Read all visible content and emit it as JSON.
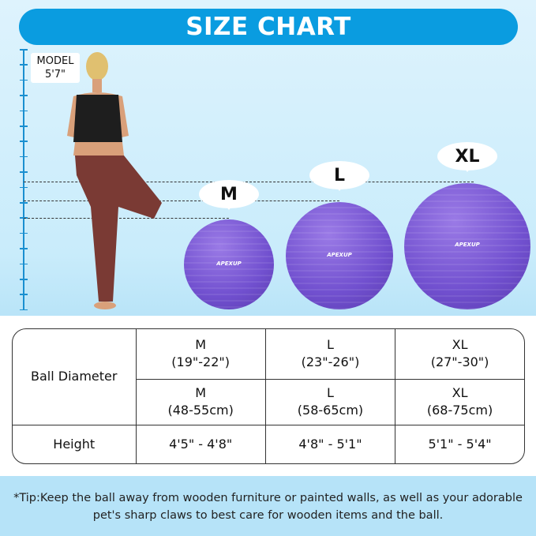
{
  "title": "SIZE CHART",
  "model": {
    "label": "MODEL",
    "height": "5'7\""
  },
  "balls": [
    {
      "size": "M",
      "brand": "APEXUP"
    },
    {
      "size": "L",
      "brand": "APEXUP"
    },
    {
      "size": "XL",
      "brand": "APEXUP"
    }
  ],
  "table": {
    "row_labels": {
      "diameter": "Ball Diameter",
      "height": "Height"
    },
    "inches": [
      {
        "size": "M",
        "range": "(19\"-22\")"
      },
      {
        "size": "L",
        "range": "(23\"-26\")"
      },
      {
        "size": "XL",
        "range": "(27\"-30\")"
      }
    ],
    "cm": [
      {
        "size": "M",
        "range": "(48-55cm)"
      },
      {
        "size": "L",
        "range": "(58-65cm)"
      },
      {
        "size": "XL",
        "range": "(68-75cm)"
      }
    ],
    "heights": [
      "4'5\" - 4'8\"",
      "4'8\" - 5'1\"",
      "5'1\" - 5'4\""
    ]
  },
  "tip": "*Tip:Keep the ball away from wooden furniture or painted walls, as well as your adorable pet's sharp claws to best care for wooden items and the ball.",
  "colors": {
    "title_bar": "#0a9ce0",
    "ball": "#7150cf",
    "tip_band": "#b6e3f8"
  }
}
